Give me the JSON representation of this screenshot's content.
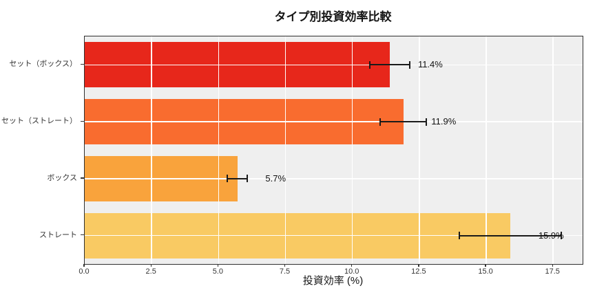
{
  "chart_data": {
    "type": "bar",
    "orientation": "horizontal",
    "title": "タイプ別投資効率比較",
    "xlabel": "投資効率 (%)",
    "categories": [
      "セット（ボックス）",
      "セット（ストレート）",
      "ボックス",
      "ストレート"
    ],
    "values": [
      11.4,
      11.9,
      5.7,
      15.9
    ],
    "errors": [
      0.75,
      0.87,
      0.38,
      1.9
    ],
    "value_labels": [
      "11.4%",
      "11.9%",
      "5.7%",
      "15.9%"
    ],
    "bar_colors": [
      "#e7271b",
      "#f96c2f",
      "#f9a33c",
      "#f9ca63"
    ],
    "xlim": [
      0,
      18.6
    ],
    "xticks": [
      0,
      2.5,
      5,
      7.5,
      10,
      12.5,
      15,
      17.5
    ],
    "xtick_labels": [
      "0.0",
      "2.5",
      "5.0",
      "7.5",
      "10.0",
      "12.5",
      "15.0",
      "17.5"
    ],
    "grid": true,
    "grid_color": "#ffffff",
    "plot_background": "#efefef",
    "error_bar_color": "#1a1a1a"
  }
}
